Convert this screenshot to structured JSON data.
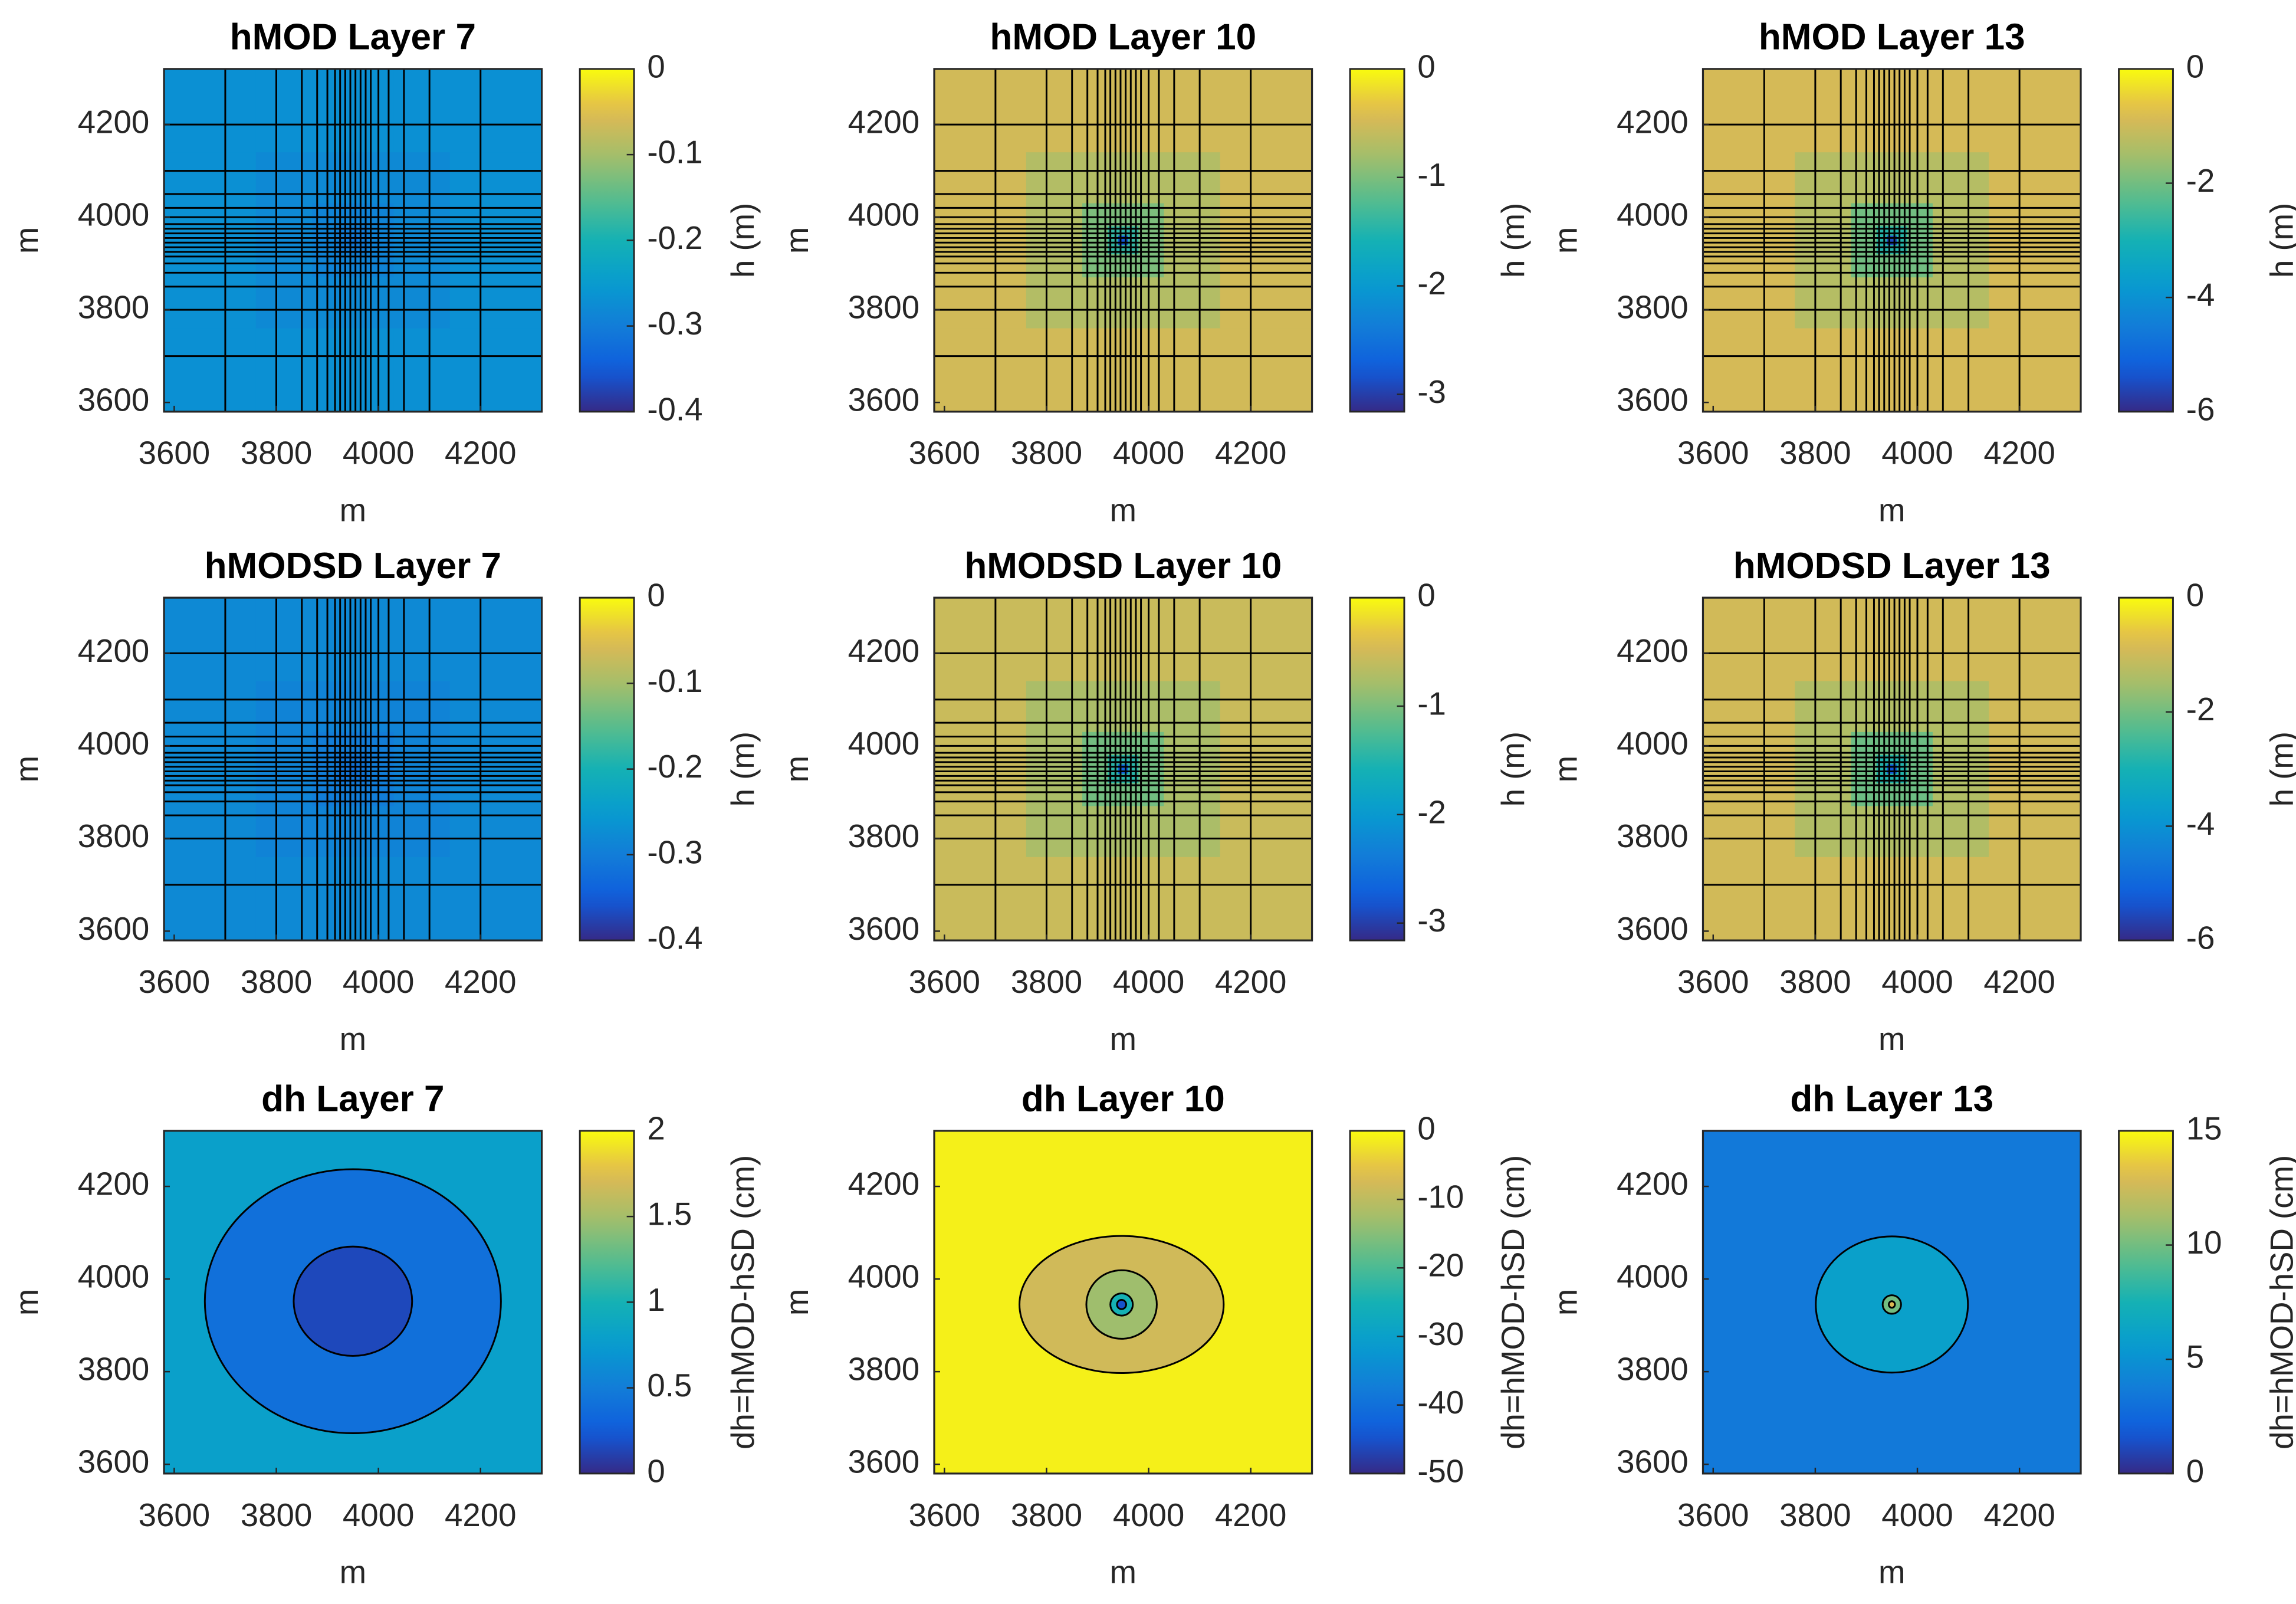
{
  "chart_data": [
    {
      "type": "heatmap",
      "title": "hMOD Layer 7",
      "xlabel": "m",
      "ylabel": "m",
      "xlim": [
        3580,
        4320
      ],
      "ylim": [
        3580,
        4320
      ],
      "xticks": [
        3600,
        3800,
        4000,
        4200
      ],
      "yticks": [
        3600,
        3800,
        4000,
        4200
      ],
      "x_edges": [
        3580,
        3760,
        3870,
        3920,
        3940,
        3960,
        3980,
        4030,
        4140,
        4320
      ],
      "y_edges": [
        4320,
        4140,
        4030,
        3980,
        3960,
        3940,
        3920,
        3870,
        3760,
        3580
      ],
      "gridlines": [
        3700,
        3800,
        3850,
        3880,
        3900,
        3915,
        3925,
        3935,
        3945,
        3955,
        3965,
        3975,
        3985,
        4000,
        4020,
        4050,
        4100,
        4200
      ],
      "values": [
        [
          -0.27,
          -0.27,
          -0.27,
          -0.27,
          -0.27,
          -0.27,
          -0.27,
          -0.27,
          -0.27
        ],
        [
          -0.27,
          -0.28,
          -0.28,
          -0.28,
          -0.28,
          -0.28,
          -0.28,
          -0.28,
          -0.27
        ],
        [
          -0.27,
          -0.28,
          -0.29,
          -0.29,
          -0.29,
          -0.29,
          -0.29,
          -0.28,
          -0.27
        ],
        [
          -0.27,
          -0.28,
          -0.29,
          -0.3,
          -0.3,
          -0.3,
          -0.29,
          -0.28,
          -0.27
        ],
        [
          -0.27,
          -0.28,
          -0.29,
          -0.3,
          -0.31,
          -0.3,
          -0.29,
          -0.28,
          -0.27
        ],
        [
          -0.27,
          -0.28,
          -0.29,
          -0.3,
          -0.3,
          -0.3,
          -0.29,
          -0.28,
          -0.27
        ],
        [
          -0.27,
          -0.28,
          -0.29,
          -0.29,
          -0.29,
          -0.29,
          -0.29,
          -0.28,
          -0.27
        ],
        [
          -0.27,
          -0.28,
          -0.28,
          -0.28,
          -0.28,
          -0.28,
          -0.28,
          -0.28,
          -0.27
        ],
        [
          -0.27,
          -0.27,
          -0.27,
          -0.27,
          -0.27,
          -0.27,
          -0.27,
          -0.27,
          -0.27
        ]
      ],
      "colorbar": {
        "label": "h (m)",
        "clim": [
          -0.4,
          0
        ],
        "ticks": [
          0,
          -0.1,
          -0.2,
          -0.3,
          -0.4
        ]
      }
    },
    {
      "type": "heatmap",
      "title": "hMOD Layer 10",
      "xlabel": "m",
      "ylabel": "m",
      "xlim": [
        3580,
        4320
      ],
      "ylim": [
        3580,
        4320
      ],
      "xticks": [
        3600,
        3800,
        4000,
        4200
      ],
      "yticks": [
        3600,
        3800,
        4000,
        4200
      ],
      "x_edges": [
        3580,
        3760,
        3870,
        3920,
        3940,
        3960,
        3980,
        4030,
        4140,
        4320
      ],
      "y_edges": [
        4320,
        4140,
        4030,
        3980,
        3960,
        3940,
        3920,
        3870,
        3760,
        3580
      ],
      "gridlines": [
        3700,
        3800,
        3850,
        3880,
        3900,
        3915,
        3925,
        3935,
        3945,
        3955,
        3965,
        3975,
        3985,
        4000,
        4020,
        4050,
        4100,
        4200
      ],
      "values": [
        [
          -0.5,
          -0.5,
          -0.5,
          -0.5,
          -0.5,
          -0.5,
          -0.5,
          -0.5,
          -0.5
        ],
        [
          -0.5,
          -0.7,
          -0.7,
          -0.7,
          -0.7,
          -0.7,
          -0.7,
          -0.7,
          -0.5
        ],
        [
          -0.5,
          -0.7,
          -1,
          -1,
          -1,
          -1,
          -1,
          -0.7,
          -0.5
        ],
        [
          -0.5,
          -0.7,
          -1,
          -1.4,
          -1.4,
          -1.4,
          -1,
          -0.7,
          -0.5
        ],
        [
          -0.5,
          -0.7,
          -1,
          -1.4,
          -2.8,
          -1.4,
          -1,
          -0.7,
          -0.5
        ],
        [
          -0.5,
          -0.7,
          -1,
          -1.4,
          -1.4,
          -1.4,
          -1,
          -0.7,
          -0.5
        ],
        [
          -0.5,
          -0.7,
          -1,
          -1,
          -1,
          -1,
          -1,
          -0.7,
          -0.5
        ],
        [
          -0.5,
          -0.7,
          -0.7,
          -0.7,
          -0.7,
          -0.7,
          -0.7,
          -0.7,
          -0.5
        ],
        [
          -0.5,
          -0.5,
          -0.5,
          -0.5,
          -0.5,
          -0.5,
          -0.5,
          -0.5,
          -0.5
        ]
      ],
      "colorbar": {
        "label": "h (m)",
        "clim": [
          -3.16,
          0
        ],
        "ticks": [
          0,
          -1,
          -2,
          -3
        ]
      }
    },
    {
      "type": "heatmap",
      "title": "hMOD Layer 13",
      "xlabel": "m",
      "ylabel": "m",
      "xlim": [
        3580,
        4320
      ],
      "ylim": [
        3580,
        4320
      ],
      "xticks": [
        3600,
        3800,
        4000,
        4200
      ],
      "yticks": [
        3600,
        3800,
        4000,
        4200
      ],
      "x_edges": [
        3580,
        3760,
        3870,
        3920,
        3940,
        3960,
        3980,
        4030,
        4140,
        4320
      ],
      "y_edges": [
        4320,
        4140,
        4030,
        3980,
        3960,
        3940,
        3920,
        3870,
        3760,
        3580
      ],
      "gridlines": [
        3700,
        3800,
        3850,
        3880,
        3900,
        3915,
        3925,
        3935,
        3945,
        3955,
        3965,
        3975,
        3985,
        4000,
        4020,
        4050,
        4100,
        4200
      ],
      "values": [
        [
          -0.9,
          -0.9,
          -0.9,
          -0.9,
          -0.9,
          -0.9,
          -0.9,
          -0.9,
          -0.9
        ],
        [
          -0.9,
          -1.3,
          -1.3,
          -1.3,
          -1.3,
          -1.3,
          -1.3,
          -1.3,
          -0.9
        ],
        [
          -0.9,
          -1.3,
          -2,
          -2,
          -2,
          -2,
          -2,
          -1.3,
          -0.9
        ],
        [
          -0.9,
          -1.3,
          -2,
          -2.8,
          -2.8,
          -2.8,
          -2,
          -1.3,
          -0.9
        ],
        [
          -0.9,
          -1.3,
          -2,
          -2.8,
          -5.5,
          -2.8,
          -2,
          -1.3,
          -0.9
        ],
        [
          -0.9,
          -1.3,
          -2,
          -2.8,
          -2.8,
          -2.8,
          -2,
          -1.3,
          -0.9
        ],
        [
          -0.9,
          -1.3,
          -2,
          -2,
          -2,
          -2,
          -2,
          -1.3,
          -0.9
        ],
        [
          -0.9,
          -1.3,
          -1.3,
          -1.3,
          -1.3,
          -1.3,
          -1.3,
          -1.3,
          -0.9
        ],
        [
          -0.9,
          -0.9,
          -0.9,
          -0.9,
          -0.9,
          -0.9,
          -0.9,
          -0.9,
          -0.9
        ]
      ],
      "colorbar": {
        "label": "h (m)",
        "clim": [
          -6,
          0
        ],
        "ticks": [
          0,
          -2,
          -4,
          -6
        ]
      }
    },
    {
      "type": "heatmap",
      "title": "hMODSD Layer 7",
      "xlabel": "m",
      "ylabel": "m",
      "xlim": [
        3580,
        4320
      ],
      "ylim": [
        3580,
        4320
      ],
      "xticks": [
        3600,
        3800,
        4000,
        4200
      ],
      "yticks": [
        3600,
        3800,
        4000,
        4200
      ],
      "x_edges": [
        3580,
        3760,
        3870,
        3920,
        3940,
        3960,
        3980,
        4030,
        4140,
        4320
      ],
      "y_edges": [
        4320,
        4140,
        4030,
        3980,
        3960,
        3940,
        3920,
        3870,
        3760,
        3580
      ],
      "gridlines": [
        3700,
        3800,
        3850,
        3880,
        3900,
        3915,
        3925,
        3935,
        3945,
        3955,
        3965,
        3975,
        3985,
        4000,
        4020,
        4050,
        4100,
        4200
      ],
      "values": [
        [
          -0.28,
          -0.28,
          -0.28,
          -0.28,
          -0.28,
          -0.28,
          -0.28,
          -0.28,
          -0.28
        ],
        [
          -0.28,
          -0.29,
          -0.29,
          -0.29,
          -0.29,
          -0.29,
          -0.29,
          -0.29,
          -0.28
        ],
        [
          -0.28,
          -0.29,
          -0.3,
          -0.3,
          -0.3,
          -0.3,
          -0.3,
          -0.29,
          -0.28
        ],
        [
          -0.28,
          -0.29,
          -0.3,
          -0.31,
          -0.31,
          -0.31,
          -0.3,
          -0.29,
          -0.28
        ],
        [
          -0.28,
          -0.29,
          -0.3,
          -0.31,
          -0.32,
          -0.31,
          -0.3,
          -0.29,
          -0.28
        ],
        [
          -0.28,
          -0.29,
          -0.3,
          -0.31,
          -0.31,
          -0.31,
          -0.3,
          -0.29,
          -0.28
        ],
        [
          -0.28,
          -0.29,
          -0.3,
          -0.3,
          -0.3,
          -0.3,
          -0.3,
          -0.29,
          -0.28
        ],
        [
          -0.28,
          -0.29,
          -0.29,
          -0.29,
          -0.29,
          -0.29,
          -0.29,
          -0.29,
          -0.28
        ],
        [
          -0.28,
          -0.28,
          -0.28,
          -0.28,
          -0.28,
          -0.28,
          -0.28,
          -0.28,
          -0.28
        ]
      ],
      "colorbar": {
        "label": "h (m)",
        "clim": [
          -0.4,
          0
        ],
        "ticks": [
          0,
          -0.1,
          -0.2,
          -0.3,
          -0.4
        ]
      }
    },
    {
      "type": "heatmap",
      "title": "hMODSD Layer 10",
      "xlabel": "m",
      "ylabel": "m",
      "xlim": [
        3580,
        4320
      ],
      "ylim": [
        3580,
        4320
      ],
      "xticks": [
        3600,
        3800,
        4000,
        4200
      ],
      "yticks": [
        3600,
        3800,
        4000,
        4200
      ],
      "x_edges": [
        3580,
        3760,
        3870,
        3920,
        3940,
        3960,
        3980,
        4030,
        4140,
        4320
      ],
      "y_edges": [
        4320,
        4140,
        4030,
        3980,
        3960,
        3940,
        3920,
        3870,
        3760,
        3580
      ],
      "gridlines": [
        3700,
        3800,
        3850,
        3880,
        3900,
        3915,
        3925,
        3935,
        3945,
        3955,
        3965,
        3975,
        3985,
        4000,
        4020,
        4050,
        4100,
        4200
      ],
      "values": [
        [
          -0.55,
          -0.55,
          -0.55,
          -0.55,
          -0.55,
          -0.55,
          -0.55,
          -0.55,
          -0.55
        ],
        [
          -0.55,
          -0.75,
          -0.75,
          -0.75,
          -0.75,
          -0.75,
          -0.75,
          -0.75,
          -0.55
        ],
        [
          -0.55,
          -0.75,
          -1.05,
          -1.05,
          -1.05,
          -1.05,
          -1.05,
          -0.75,
          -0.55
        ],
        [
          -0.55,
          -0.75,
          -1.05,
          -1.45,
          -1.45,
          -1.45,
          -1.05,
          -0.75,
          -0.55
        ],
        [
          -0.55,
          -0.75,
          -1.05,
          -1.45,
          -2.7,
          -1.45,
          -1.05,
          -0.75,
          -0.55
        ],
        [
          -0.55,
          -0.75,
          -1.05,
          -1.45,
          -1.45,
          -1.45,
          -1.05,
          -0.75,
          -0.55
        ],
        [
          -0.55,
          -0.75,
          -1.05,
          -1.05,
          -1.05,
          -1.05,
          -1.05,
          -0.75,
          -0.55
        ],
        [
          -0.55,
          -0.75,
          -0.75,
          -0.75,
          -0.75,
          -0.75,
          -0.75,
          -0.75,
          -0.55
        ],
        [
          -0.55,
          -0.55,
          -0.55,
          -0.55,
          -0.55,
          -0.55,
          -0.55,
          -0.55,
          -0.55
        ]
      ],
      "colorbar": {
        "label": "h (m)",
        "clim": [
          -3.16,
          0
        ],
        "ticks": [
          0,
          -1,
          -2,
          -3
        ]
      }
    },
    {
      "type": "heatmap",
      "title": "hMODSD Layer 13",
      "xlabel": "m",
      "ylabel": "m",
      "xlim": [
        3580,
        4320
      ],
      "ylim": [
        3580,
        4320
      ],
      "xticks": [
        3600,
        3800,
        4000,
        4200
      ],
      "yticks": [
        3600,
        3800,
        4000,
        4200
      ],
      "x_edges": [
        3580,
        3760,
        3870,
        3920,
        3940,
        3960,
        3980,
        4030,
        4140,
        4320
      ],
      "y_edges": [
        4320,
        4140,
        4030,
        3980,
        3960,
        3940,
        3920,
        3870,
        3760,
        3580
      ],
      "gridlines": [
        3700,
        3800,
        3850,
        3880,
        3900,
        3915,
        3925,
        3935,
        3945,
        3955,
        3965,
        3975,
        3985,
        4000,
        4020,
        4050,
        4100,
        4200
      ],
      "values": [
        [
          -0.95,
          -0.95,
          -0.95,
          -0.95,
          -0.95,
          -0.95,
          -0.95,
          -0.95,
          -0.95
        ],
        [
          -0.95,
          -1.35,
          -1.35,
          -1.35,
          -1.35,
          -1.35,
          -1.35,
          -1.35,
          -0.95
        ],
        [
          -0.95,
          -1.35,
          -2.05,
          -2.05,
          -2.05,
          -2.05,
          -2.05,
          -1.35,
          -0.95
        ],
        [
          -0.95,
          -1.35,
          -2.05,
          -2.85,
          -2.85,
          -2.85,
          -2.05,
          -1.35,
          -0.95
        ],
        [
          -0.95,
          -1.35,
          -2.05,
          -2.85,
          -5.3,
          -2.85,
          -2.05,
          -1.35,
          -0.95
        ],
        [
          -0.95,
          -1.35,
          -2.05,
          -2.85,
          -2.85,
          -2.85,
          -2.05,
          -1.35,
          -0.95
        ],
        [
          -0.95,
          -1.35,
          -2.05,
          -2.05,
          -2.05,
          -2.05,
          -2.05,
          -1.35,
          -0.95
        ],
        [
          -0.95,
          -1.35,
          -1.35,
          -1.35,
          -1.35,
          -1.35,
          -1.35,
          -1.35,
          -0.95
        ],
        [
          -0.95,
          -0.95,
          -0.95,
          -0.95,
          -0.95,
          -0.95,
          -0.95,
          -0.95,
          -0.95
        ]
      ],
      "colorbar": {
        "label": "h (m)",
        "clim": [
          -6,
          0
        ],
        "ticks": [
          0,
          -2,
          -4,
          -6
        ]
      }
    },
    {
      "type": "contour",
      "title": "dh Layer 7",
      "xlabel": "m",
      "ylabel": "m",
      "xlim": [
        3580,
        4320
      ],
      "ylim": [
        3580,
        4320
      ],
      "xticks": [
        3600,
        3800,
        4000,
        4200
      ],
      "yticks": [
        3600,
        3800,
        4000,
        4200
      ],
      "base": 0.8,
      "center": [
        3950,
        3952
      ],
      "regions": [
        {
          "value": 0.4,
          "rx": 290,
          "ry": 285
        },
        {
          "value": 0.15,
          "rx": 116,
          "ry": 118
        }
      ],
      "colorbar": {
        "label": "dh=hMOD-hSD (cm)",
        "clim": [
          0,
          2
        ],
        "ticks": [
          0,
          0.5,
          1,
          1.5,
          2
        ]
      }
    },
    {
      "type": "contour",
      "title": "dh Layer 10",
      "xlabel": "m",
      "ylabel": "m",
      "xlim": [
        3580,
        4320
      ],
      "ylim": [
        3580,
        4320
      ],
      "xticks": [
        3600,
        3800,
        4000,
        4200
      ],
      "yticks": [
        3600,
        3800,
        4000,
        4200
      ],
      "base": -1,
      "center": [
        3947,
        3945
      ],
      "regions": [
        {
          "value": -8,
          "rx": 200,
          "ry": 148
        },
        {
          "value": -13,
          "rx": 69,
          "ry": 74
        },
        {
          "value": -25,
          "rx": 22,
          "ry": 24
        },
        {
          "value": -45,
          "rx": 9,
          "ry": 10
        }
      ],
      "colorbar": {
        "label": "dh=hMOD-hSD (cm)",
        "clim": [
          -50,
          0
        ],
        "ticks": [
          0,
          -10,
          -20,
          -30,
          -40,
          -50
        ]
      }
    },
    {
      "type": "contour",
      "title": "dh Layer 13",
      "xlabel": "m",
      "ylabel": "m",
      "xlim": [
        3580,
        4320
      ],
      "ylim": [
        3580,
        4320
      ],
      "xticks": [
        3600,
        3800,
        4000,
        4200
      ],
      "yticks": [
        3600,
        3800,
        4000,
        4200
      ],
      "base": 3.5,
      "center": [
        3950,
        3945
      ],
      "regions": [
        {
          "value": 6,
          "rx": 149,
          "ry": 147
        },
        {
          "value": 10,
          "rx": 18,
          "ry": 20
        },
        {
          "value": 13,
          "rx": 6,
          "ry": 7
        }
      ],
      "colorbar": {
        "label": "dh=hMOD-hSD (cm)",
        "clim": [
          0,
          15
        ],
        "ticks": [
          0,
          5,
          10,
          15
        ]
      }
    }
  ]
}
